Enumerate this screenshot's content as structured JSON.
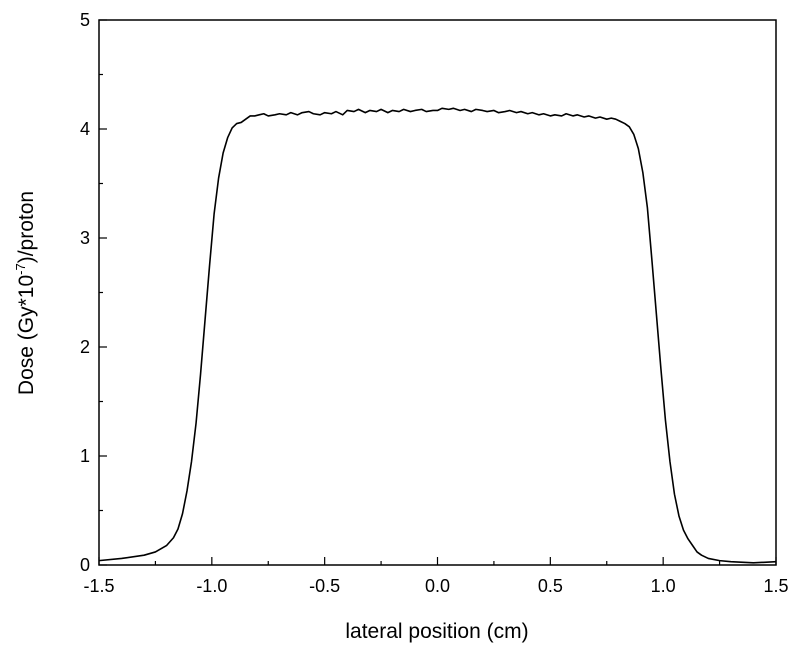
{
  "chart_data": {
    "type": "line",
    "title": "",
    "xlabel": "lateral position (cm)",
    "ylabel": {
      "prefix": "Dose (Gy*10",
      "superscript": "-7",
      "suffix": ")/proton"
    },
    "xlim": [
      -1.5,
      1.5
    ],
    "ylim": [
      0,
      5
    ],
    "x_ticks": [
      -1.5,
      -1.0,
      -0.5,
      0.0,
      0.5,
      1.0,
      1.5
    ],
    "x_tick_labels": [
      "-1.5",
      "-1.0",
      "-0.5",
      "0.0",
      "0.5",
      "1.0",
      "1.5"
    ],
    "y_ticks": [
      0,
      1,
      2,
      3,
      4,
      5
    ],
    "y_tick_labels": [
      "0",
      "1",
      "2",
      "3",
      "4",
      "5"
    ],
    "grid": false,
    "legend": "none",
    "line_color": "#000000",
    "series": [
      {
        "x": [
          -1.5,
          -1.4,
          -1.3,
          -1.25,
          -1.2,
          -1.17,
          -1.15,
          -1.13,
          -1.11,
          -1.09,
          -1.07,
          -1.05,
          -1.03,
          -1.01,
          -0.99,
          -0.97,
          -0.95,
          -0.93,
          -0.91,
          -0.89,
          -0.87,
          -0.85,
          -0.83,
          -0.81,
          -0.79,
          -0.77,
          -0.75,
          -0.72,
          -0.7,
          -0.67,
          -0.65,
          -0.62,
          -0.6,
          -0.57,
          -0.55,
          -0.52,
          -0.5,
          -0.47,
          -0.45,
          -0.42,
          -0.4,
          -0.37,
          -0.35,
          -0.32,
          -0.3,
          -0.27,
          -0.25,
          -0.22,
          -0.2,
          -0.17,
          -0.15,
          -0.12,
          -0.1,
          -0.07,
          -0.05,
          -0.02,
          0.0,
          0.02,
          0.05,
          0.07,
          0.1,
          0.12,
          0.15,
          0.17,
          0.2,
          0.22,
          0.25,
          0.27,
          0.3,
          0.32,
          0.35,
          0.37,
          0.4,
          0.42,
          0.45,
          0.47,
          0.5,
          0.52,
          0.55,
          0.57,
          0.6,
          0.62,
          0.65,
          0.67,
          0.7,
          0.72,
          0.75,
          0.77,
          0.79,
          0.81,
          0.83,
          0.85,
          0.87,
          0.89,
          0.91,
          0.93,
          0.95,
          0.97,
          0.99,
          1.01,
          1.03,
          1.05,
          1.07,
          1.09,
          1.11,
          1.13,
          1.15,
          1.17,
          1.2,
          1.25,
          1.3,
          1.4,
          1.5
        ],
        "y": [
          0.04,
          0.06,
          0.09,
          0.12,
          0.18,
          0.25,
          0.33,
          0.47,
          0.68,
          0.95,
          1.3,
          1.75,
          2.25,
          2.75,
          3.22,
          3.55,
          3.78,
          3.92,
          4.01,
          4.05,
          4.06,
          4.09,
          4.12,
          4.12,
          4.13,
          4.14,
          4.12,
          4.13,
          4.14,
          4.13,
          4.15,
          4.13,
          4.15,
          4.16,
          4.14,
          4.13,
          4.15,
          4.14,
          4.16,
          4.13,
          4.17,
          4.16,
          4.18,
          4.15,
          4.17,
          4.16,
          4.18,
          4.15,
          4.17,
          4.16,
          4.18,
          4.16,
          4.17,
          4.18,
          4.16,
          4.17,
          4.17,
          4.19,
          4.18,
          4.19,
          4.17,
          4.18,
          4.16,
          4.18,
          4.17,
          4.16,
          4.17,
          4.15,
          4.16,
          4.17,
          4.15,
          4.16,
          4.14,
          4.15,
          4.13,
          4.14,
          4.12,
          4.13,
          4.12,
          4.14,
          4.12,
          4.13,
          4.11,
          4.12,
          4.1,
          4.11,
          4.09,
          4.1,
          4.09,
          4.07,
          4.05,
          4.02,
          3.95,
          3.82,
          3.6,
          3.28,
          2.8,
          2.3,
          1.8,
          1.33,
          0.95,
          0.65,
          0.45,
          0.32,
          0.24,
          0.18,
          0.12,
          0.09,
          0.06,
          0.04,
          0.03,
          0.02,
          0.03
        ]
      }
    ]
  }
}
